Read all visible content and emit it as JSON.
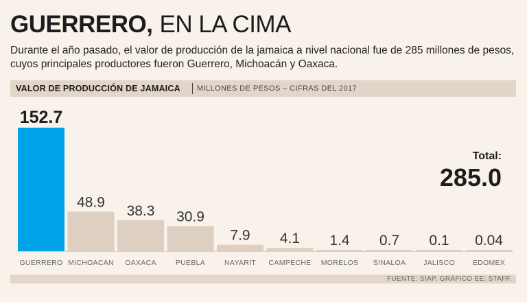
{
  "headline": {
    "bold": "GUERRERO,",
    "light": "EN LA CIMA"
  },
  "subtitle": "Durante el año pasado, el valor de producción de la jamaica a nivel nacional fue de 285 millones de pesos, cuyos principales productores fueron Guerrero, Michoacán y Oaxaca.",
  "section": {
    "title": "VALOR DE PRODUCCIÓN DE JAMAICA",
    "subtitle": "MILLONES DE PESOS – CIFRAS DEL 2017"
  },
  "total": {
    "label": "Total:",
    "value": "285.0"
  },
  "footer": {
    "source": "FUENTE: SIAP. GRÁFICO EE: STAFF."
  },
  "colors": {
    "highlight": "#00a3e8",
    "bar": "#ddd0c3",
    "background": "#f9f2ea",
    "band": "#e2d6ca"
  },
  "chart_data": {
    "type": "bar",
    "title": "VALOR DE PRODUCCIÓN DE JAMAICA",
    "subtitle": "MILLONES DE PESOS – CIFRAS DEL 2017",
    "categories": [
      "GUERRERO",
      "MICHOACÁN",
      "OAXACA",
      "PUEBLA",
      "NAYARIT",
      "CAMPECHE",
      "MORELOS",
      "SINALOA",
      "JALISCO",
      "EDOMEX"
    ],
    "values": [
      152.7,
      48.9,
      38.3,
      30.9,
      7.9,
      4.1,
      1.4,
      0.7,
      0.1,
      0.04
    ],
    "labels": [
      "152.7",
      "48.9",
      "38.3",
      "30.9",
      "7.9",
      "4.1",
      "1.4",
      "0.7",
      "0.1",
      "0.04"
    ],
    "highlight_index": 0,
    "ylim": [
      0,
      152.7
    ],
    "grid": false,
    "legend": "none"
  }
}
